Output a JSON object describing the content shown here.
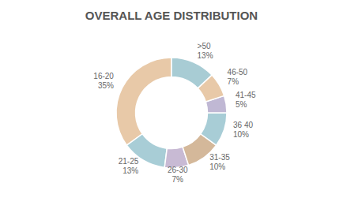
{
  "chart_data": {
    "type": "pie",
    "title": "OVERALL AGE DISTRIBUTION",
    "categories": [
      "16-20",
      "21-25",
      "26-30",
      "31-35",
      "36 40",
      "41-45",
      "46-50",
      ">50"
    ],
    "values": [
      35,
      13,
      7,
      10,
      10,
      5,
      7,
      13
    ],
    "value_labels": [
      "35%",
      "13%",
      "7%",
      "10%",
      "10%",
      "5%",
      "7%",
      "13%"
    ],
    "colors": [
      "#e8c9a8",
      "#a8cdd6",
      "#c8bad4",
      "#d4b89a",
      "#a8cdd6",
      "#c0b8d4",
      "#e8c9a8",
      "#a8ccd4"
    ],
    "data_labels": true
  }
}
